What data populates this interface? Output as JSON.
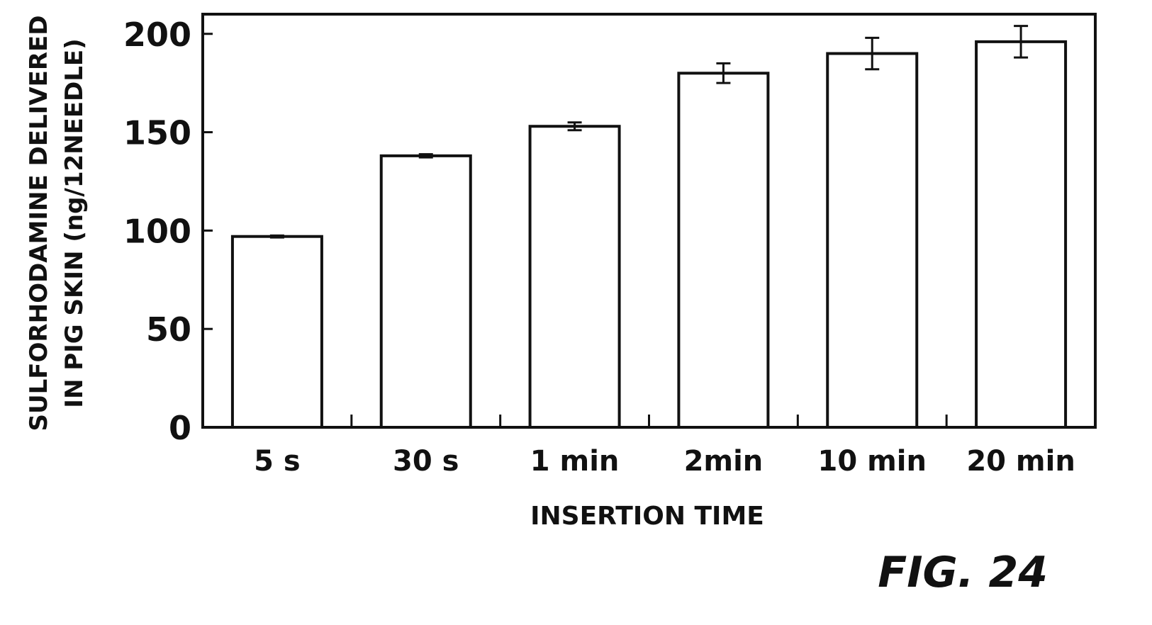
{
  "chart_data": {
    "type": "bar",
    "categories": [
      "5 s",
      "30 s",
      "1 min",
      "2min",
      "10 min",
      "20 min"
    ],
    "values": [
      97,
      138,
      153,
      180,
      190,
      196
    ],
    "errors": [
      0.5,
      0.8,
      2,
      5,
      8,
      8
    ],
    "xlabel": "INSERTION TIME",
    "ylabel_line1": "SULFORHODAMINE DELIVERED",
    "ylabel_line2": "IN PIG SKIN (ng/12NEEDLE)",
    "ylim": [
      0,
      210
    ],
    "yticks": [
      0,
      50,
      100,
      150,
      200
    ],
    "grid": false,
    "figure_label": "FIG. 24",
    "colors": {
      "bar_fill": "#ffffff",
      "stroke": "#111111"
    }
  }
}
